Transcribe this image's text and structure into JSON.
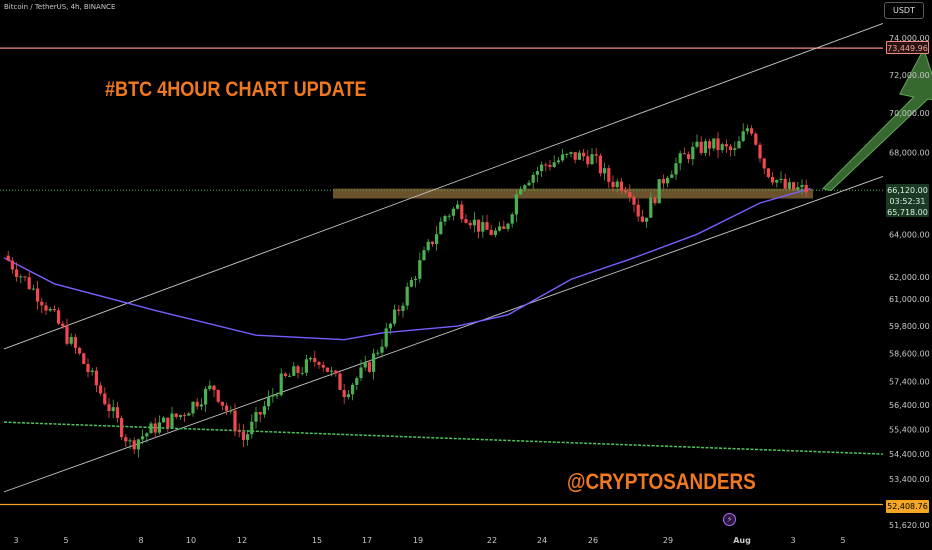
{
  "header": {
    "symbol": "Bitcoin / TetherUS, 4h, BINANCE",
    "currency": "USDT"
  },
  "annotations": {
    "headline": "#BTC 4HOUR CHART UPDATE",
    "watermark": "@CRYPTOSANDERS"
  },
  "price_labels": {
    "resistance": "73,449.96",
    "current": "66,120.00",
    "countdown": "03:52:31",
    "zone": "65,718.00",
    "support": "52,408.76"
  },
  "colors": {
    "up": "#4caf50",
    "down": "#f0484f",
    "ma": "#7c5cff",
    "channel": "#c8c8c8",
    "resistance": "#f08c82",
    "support": "#f5a623",
    "trend": "#4cc65c",
    "zone": "#b08a4a",
    "arrow": "#3f7a38",
    "text_orange": "#f0781e"
  },
  "icons": {
    "event": "lightning-event-icon"
  },
  "chart_data": {
    "type": "candlestick",
    "symbol": "Bitcoin / TetherUS",
    "timeframe": "4h",
    "exchange": "BINANCE",
    "y_axis": {
      "scale": "log",
      "range": [
        51200,
        75800
      ],
      "tick_labels": [
        "74,000.00",
        "72,000.00",
        "70,000.00",
        "68,000.00",
        "64,000.00",
        "62,000.00",
        "61,000.00",
        "59,800.00",
        "58,600.00",
        "57,400.00",
        "56,400.00",
        "55,400.00",
        "54,400.00",
        "53,400.00",
        "51,620.00"
      ]
    },
    "x_axis": {
      "tick_labels": [
        "3",
        "5",
        "8",
        "10",
        "12",
        "15",
        "17",
        "19",
        "22",
        "24",
        "26",
        "29",
        "Aug",
        "3",
        "5"
      ]
    },
    "grid": false,
    "candle_close_path": [
      {
        "t": 0,
        "price": 63000
      },
      {
        "t": 1.5,
        "price": 61000
      },
      {
        "t": 3,
        "price": 58500
      },
      {
        "t": 5,
        "price": 54800
      },
      {
        "t": 6,
        "price": 55500
      },
      {
        "t": 7,
        "price": 56000
      },
      {
        "t": 8.3,
        "price": 57200
      },
      {
        "t": 9.5,
        "price": 55000
      },
      {
        "t": 11,
        "price": 57400
      },
      {
        "t": 12.5,
        "price": 58400
      },
      {
        "t": 13.5,
        "price": 57000
      },
      {
        "t": 14.5,
        "price": 58100
      },
      {
        "t": 15.5,
        "price": 60200
      },
      {
        "t": 16.5,
        "price": 62600
      },
      {
        "t": 17.5,
        "price": 64900
      },
      {
        "t": 18,
        "price": 65300
      },
      {
        "t": 19,
        "price": 64200
      },
      {
        "t": 19.8,
        "price": 64000
      },
      {
        "t": 20.5,
        "price": 66500
      },
      {
        "t": 21.5,
        "price": 67400
      },
      {
        "t": 22.5,
        "price": 67800
      },
      {
        "t": 23.3,
        "price": 67800
      },
      {
        "t": 24,
        "price": 66600
      },
      {
        "t": 24.8,
        "price": 66300
      },
      {
        "t": 25.3,
        "price": 64600
      },
      {
        "t": 26.3,
        "price": 67000
      },
      {
        "t": 27.2,
        "price": 68000
      },
      {
        "t": 28,
        "price": 68400
      },
      {
        "t": 29,
        "price": 68000
      },
      {
        "t": 29.6,
        "price": 69500
      },
      {
        "t": 30.2,
        "price": 67200
      },
      {
        "t": 31,
        "price": 66200
      },
      {
        "t": 32,
        "price": 66120
      }
    ],
    "moving_average_path": [
      {
        "t": 0,
        "price": 62900
      },
      {
        "t": 2,
        "price": 61700
      },
      {
        "t": 6,
        "price": 60500
      },
      {
        "t": 10,
        "price": 59400
      },
      {
        "t": 13.5,
        "price": 59200
      },
      {
        "t": 15,
        "price": 59500
      },
      {
        "t": 18,
        "price": 59800
      },
      {
        "t": 20,
        "price": 60300
      },
      {
        "t": 22.5,
        "price": 61900
      },
      {
        "t": 25,
        "price": 62900
      },
      {
        "t": 27.5,
        "price": 64000
      },
      {
        "t": 30,
        "price": 65500
      },
      {
        "t": 32,
        "price": 66200
      }
    ],
    "lines": [
      {
        "kind": "horizontal",
        "name": "resistance",
        "price": 73449.96
      },
      {
        "kind": "horizontal",
        "name": "support",
        "price": 52408.76
      },
      {
        "kind": "horizontal-dotted",
        "name": "current-price",
        "price": 66120.0
      },
      {
        "kind": "channel-upper",
        "from": {
          "t": 0,
          "price": 58800
        },
        "to": {
          "t": 36,
          "price": 74800
        }
      },
      {
        "kind": "channel-lower",
        "from": {
          "t": 0,
          "price": 52900
        },
        "to": {
          "t": 36,
          "price": 66800
        }
      },
      {
        "kind": "trend-dashed",
        "from": {
          "t": 0,
          "price": 55700
        },
        "to": {
          "t": 41,
          "price": 54400
        }
      }
    ],
    "zone": {
      "price_top": 66200,
      "price_bottom": 65718.0
    },
    "projection": {
      "from": {
        "t": 32.5,
        "price": 66200
      },
      "to": {
        "t": 36.5,
        "price": 73400
      }
    }
  }
}
